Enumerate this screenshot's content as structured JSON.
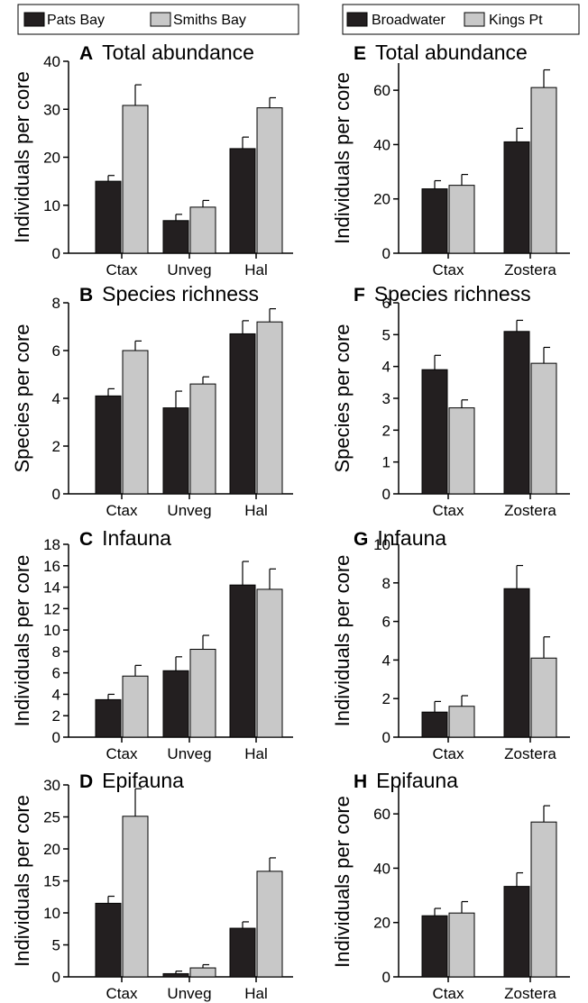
{
  "legends": [
    {
      "items": [
        {
          "name": "Pats Bay",
          "color": "#231f20"
        },
        {
          "name": "Smiths Bay",
          "color": "#c8c8c8"
        }
      ]
    },
    {
      "items": [
        {
          "name": "Broadwater",
          "color": "#231f20"
        },
        {
          "name": "Kings Pt",
          "color": "#c8c8c8"
        }
      ]
    }
  ],
  "chart_data": [
    {
      "type": "bar",
      "letter": "A",
      "title": "Total abundance",
      "ylabel": "Individuals per core",
      "categories": [
        "Ctax",
        "Unveg",
        "Hal"
      ],
      "ylim": [
        0,
        40
      ],
      "yticks": [
        0,
        10,
        20,
        30,
        40
      ],
      "series": [
        {
          "name": "Pats Bay",
          "values": [
            15,
            6.8,
            21.8
          ],
          "errors": [
            1.2,
            1.3,
            2.4
          ]
        },
        {
          "name": "Smiths Bay",
          "values": [
            30.8,
            9.6,
            30.3
          ],
          "errors": [
            4.3,
            1.4,
            2.1
          ]
        }
      ]
    },
    {
      "type": "bar",
      "letter": "B",
      "title": "Species richness",
      "ylabel": "Species per core",
      "categories": [
        "Ctax",
        "Unveg",
        "Hal"
      ],
      "ylim": [
        0,
        8
      ],
      "yticks": [
        0,
        2,
        4,
        6,
        8
      ],
      "series": [
        {
          "name": "Pats Bay",
          "values": [
            4.1,
            3.6,
            6.7
          ],
          "errors": [
            0.3,
            0.7,
            0.55
          ]
        },
        {
          "name": "Smiths Bay",
          "values": [
            6.0,
            4.6,
            7.2
          ],
          "errors": [
            0.4,
            0.3,
            0.55
          ]
        }
      ]
    },
    {
      "type": "bar",
      "letter": "C",
      "title": "Infauna",
      "ylabel": "Individuals per core",
      "categories": [
        "Ctax",
        "Unveg",
        "Hal"
      ],
      "ylim": [
        0,
        18
      ],
      "yticks": [
        0,
        2,
        4,
        6,
        8,
        10,
        12,
        14,
        16,
        18
      ],
      "series": [
        {
          "name": "Pats Bay",
          "values": [
            3.5,
            6.2,
            14.2
          ],
          "errors": [
            0.5,
            1.3,
            2.2
          ]
        },
        {
          "name": "Smiths Bay",
          "values": [
            5.7,
            8.2,
            13.8
          ],
          "errors": [
            1.0,
            1.3,
            1.9
          ]
        }
      ]
    },
    {
      "type": "bar",
      "letter": "D",
      "title": "Epifauna",
      "ylabel": "Individuals per core",
      "categories": [
        "Ctax",
        "Unveg",
        "Hal"
      ],
      "ylim": [
        0,
        30
      ],
      "yticks": [
        0,
        5,
        10,
        15,
        20,
        25,
        30
      ],
      "series": [
        {
          "name": "Pats Bay",
          "values": [
            11.5,
            0.5,
            7.6
          ],
          "errors": [
            1.1,
            0.4,
            1.0
          ]
        },
        {
          "name": "Smiths Bay",
          "values": [
            25.1,
            1.4,
            16.5
          ],
          "errors": [
            4.3,
            0.5,
            2.1
          ]
        }
      ]
    },
    {
      "type": "bar",
      "letter": "E",
      "title": "Total abundance",
      "ylabel": "Individuals per core",
      "categories": [
        "Ctax",
        "Zostera"
      ],
      "ylim": [
        0,
        70
      ],
      "yticks": [
        0,
        20,
        40,
        60
      ],
      "series": [
        {
          "name": "Broadwater",
          "values": [
            23.7,
            41
          ],
          "errors": [
            3,
            5
          ]
        },
        {
          "name": "Kings Pt",
          "values": [
            25,
            61
          ],
          "errors": [
            4,
            6.5
          ]
        }
      ]
    },
    {
      "type": "bar",
      "letter": "F",
      "title": "Species richness",
      "ylabel": "Species per core",
      "categories": [
        "Ctax",
        "Zostera"
      ],
      "ylim": [
        0,
        6
      ],
      "yticks": [
        0,
        1,
        2,
        3,
        4,
        5,
        6
      ],
      "series": [
        {
          "name": "Broadwater",
          "values": [
            3.9,
            5.1
          ],
          "errors": [
            0.45,
            0.35
          ]
        },
        {
          "name": "Kings Pt",
          "values": [
            2.7,
            4.1
          ],
          "errors": [
            0.25,
            0.5
          ]
        }
      ]
    },
    {
      "type": "bar",
      "letter": "G",
      "title": "Infauna",
      "ylabel": "Individuals per core",
      "categories": [
        "Ctax",
        "Zostera"
      ],
      "ylim": [
        0,
        10
      ],
      "yticks": [
        0,
        2,
        4,
        6,
        8,
        10
      ],
      "series": [
        {
          "name": "Broadwater",
          "values": [
            1.3,
            7.7
          ],
          "errors": [
            0.55,
            1.2
          ]
        },
        {
          "name": "Kings Pt",
          "values": [
            1.6,
            4.1
          ],
          "errors": [
            0.55,
            1.1
          ]
        }
      ]
    },
    {
      "type": "bar",
      "letter": "H",
      "title": "Epifauna",
      "ylabel": "Individuals per core",
      "categories": [
        "Ctax",
        "Zostera"
      ],
      "ylim": [
        0,
        70
      ],
      "yticks": [
        0,
        20,
        40,
        60
      ],
      "series": [
        {
          "name": "Broadwater",
          "values": [
            22.5,
            33.3
          ],
          "errors": [
            2.7,
            5
          ]
        },
        {
          "name": "Kings Pt",
          "values": [
            23.5,
            57
          ],
          "errors": [
            4.2,
            6
          ]
        }
      ]
    }
  ]
}
